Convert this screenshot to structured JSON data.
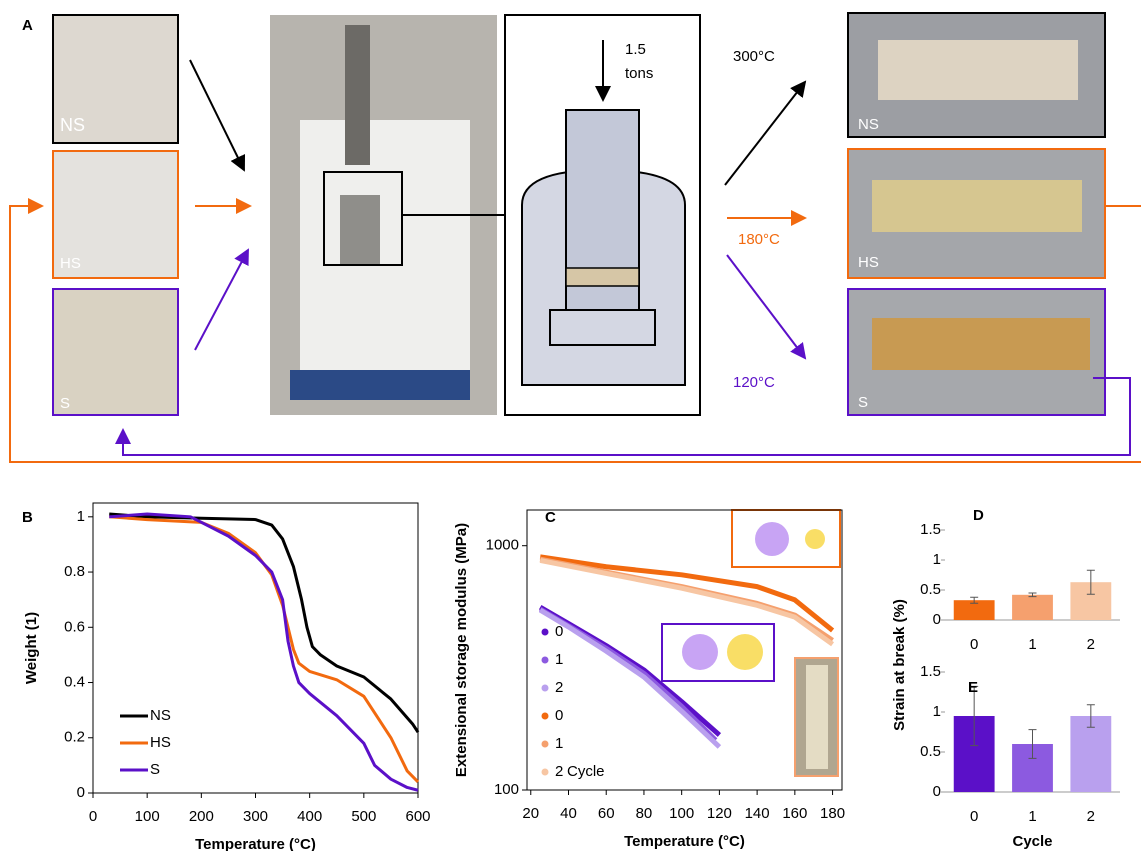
{
  "panel_a": {
    "label": "A",
    "powders": [
      "NS",
      "HS",
      "S"
    ],
    "force": [
      "1.5",
      "tons"
    ],
    "temperatures": [
      "300°C",
      "180°C",
      "120°C"
    ],
    "bars": [
      "NS",
      "HS",
      "S"
    ]
  },
  "chart_data": [
    {
      "type": "line",
      "panel": "B",
      "x_label": "Temperature (°C)",
      "y_label": "Weight (1)",
      "xlim": [
        0,
        600
      ],
      "xticks": [
        0,
        100,
        200,
        300,
        400,
        500,
        600
      ],
      "ylim": [
        0,
        1.05
      ],
      "yticks": [
        0,
        0.2,
        0.4,
        0.6,
        0.8,
        1
      ],
      "log_y": false,
      "series": [
        {
          "name": "NS",
          "color": "#000000",
          "x": [
            30,
            100,
            200,
            300,
            330,
            350,
            370,
            385,
            395,
            405,
            420,
            450,
            500,
            550,
            590,
            600
          ],
          "values": [
            1.01,
            1.0,
            0.995,
            0.99,
            0.97,
            0.92,
            0.82,
            0.7,
            0.6,
            0.53,
            0.5,
            0.46,
            0.42,
            0.34,
            0.25,
            0.22
          ]
        },
        {
          "name": "HS",
          "color": "#f26a0f",
          "x": [
            30,
            100,
            200,
            250,
            300,
            330,
            350,
            360,
            370,
            380,
            400,
            450,
            500,
            550,
            580,
            600
          ],
          "values": [
            1.0,
            0.99,
            0.98,
            0.94,
            0.87,
            0.79,
            0.68,
            0.6,
            0.52,
            0.47,
            0.44,
            0.41,
            0.35,
            0.2,
            0.08,
            0.04
          ]
        },
        {
          "name": "S",
          "color": "#5b10c8",
          "x": [
            30,
            100,
            180,
            200,
            250,
            300,
            330,
            350,
            360,
            370,
            380,
            400,
            450,
            500,
            520,
            550,
            580,
            600
          ],
          "values": [
            1.0,
            1.01,
            1.0,
            0.98,
            0.93,
            0.86,
            0.8,
            0.7,
            0.55,
            0.46,
            0.4,
            0.36,
            0.28,
            0.18,
            0.1,
            0.05,
            0.02,
            0.01
          ]
        }
      ]
    },
    {
      "type": "line",
      "panel": "C",
      "x_label": "Temperature (°C)",
      "y_label": "Extensional storage modulus (MPa)",
      "legend_title": "Cycle",
      "xlim": [
        18,
        185
      ],
      "xticks": [
        20,
        40,
        60,
        80,
        100,
        120,
        140,
        160,
        180
      ],
      "ylim": [
        100,
        1400
      ],
      "yticks": [
        100,
        1000
      ],
      "log_y": true,
      "series": [
        {
          "name": "0",
          "color": "#5b10c8",
          "x": [
            25,
            40,
            60,
            80,
            100,
            120
          ],
          "values": [
            560,
            480,
            390,
            310,
            230,
            168
          ]
        },
        {
          "name": "1",
          "color": "#8c5ae0",
          "x": [
            25,
            40,
            60,
            80,
            100,
            118
          ],
          "values": [
            550,
            470,
            380,
            300,
            220,
            160
          ]
        },
        {
          "name": "2",
          "color": "#b9a0ee",
          "x": [
            25,
            40,
            60,
            80,
            100,
            120
          ],
          "values": [
            545,
            465,
            370,
            290,
            210,
            150
          ]
        },
        {
          "name": "0",
          "color": "#f26a0f",
          "x": [
            25,
            60,
            100,
            140,
            160,
            180
          ],
          "values": [
            900,
            820,
            760,
            680,
            600,
            450
          ]
        },
        {
          "name": "1",
          "color": "#f5a06e",
          "x": [
            25,
            60,
            100,
            140,
            160,
            180
          ],
          "values": [
            880,
            780,
            680,
            580,
            520,
            410
          ]
        },
        {
          "name": "2",
          "color": "#f7c6a3",
          "x": [
            25,
            60,
            100,
            140,
            160,
            180
          ],
          "values": [
            870,
            770,
            670,
            570,
            510,
            395
          ]
        }
      ]
    },
    {
      "type": "bar",
      "panel": "D",
      "y_label": "Strain at break (%)",
      "categories": [
        "0",
        "1",
        "2"
      ],
      "values": [
        0.33,
        0.42,
        0.63
      ],
      "errors": [
        0.05,
        0.03,
        0.2
      ],
      "colors": [
        "#f26a0f",
        "#f5a06e",
        "#f7c6a3"
      ],
      "ylim": [
        0,
        1.5
      ],
      "yticks": [
        0,
        0.5,
        1,
        1.5
      ]
    },
    {
      "type": "bar",
      "panel": "E",
      "x_label": "Cycle",
      "categories": [
        "0",
        "1",
        "2"
      ],
      "values": [
        0.95,
        0.6,
        0.95
      ],
      "errors": [
        0.37,
        0.18,
        0.14
      ],
      "colors": [
        "#5b10c8",
        "#8c5ae0",
        "#b9a0ee"
      ],
      "ylim": [
        0,
        1.5
      ],
      "yticks": [
        0,
        0.5,
        1,
        1.5
      ]
    }
  ]
}
